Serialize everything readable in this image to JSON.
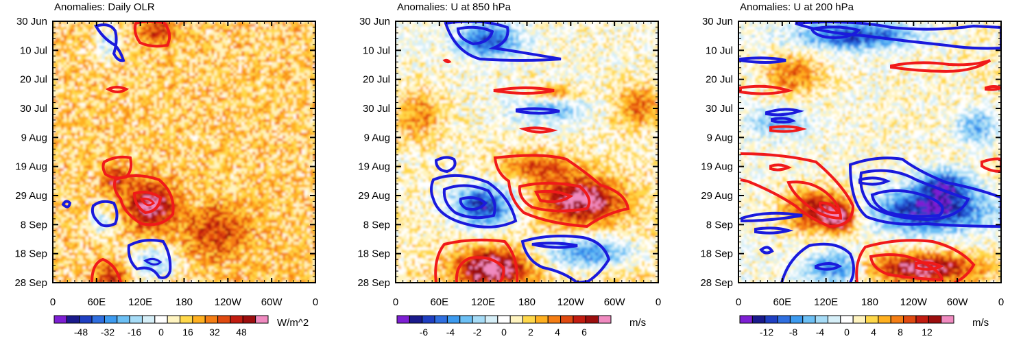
{
  "chart_data": [
    {
      "type": "heatmap",
      "title": "Anomalies: Daily OLR",
      "x_ticks": [
        "0",
        "60E",
        "120E",
        "180",
        "120W",
        "60W",
        "0"
      ],
      "y_ticks": [
        "30 Jun",
        "10 Jul",
        "20 Jul",
        "30 Jul",
        "9 Aug",
        "19 Aug",
        "29 Aug",
        "8 Sep",
        "18 Sep",
        "28 Sep"
      ],
      "xlim": [
        0,
        360
      ],
      "ylim_dates": [
        "30 Jun",
        "28 Sep"
      ],
      "colorbar": {
        "labels": [
          "-48",
          "-32",
          "-16",
          "0",
          "16",
          "32",
          "48"
        ],
        "units": "W/m^2",
        "range": [
          -64,
          64
        ]
      }
    },
    {
      "type": "heatmap",
      "title": "Anomalies: U at 850 hPa",
      "x_ticks": [
        "0",
        "60E",
        "120E",
        "180",
        "120W",
        "60W",
        "0"
      ],
      "y_ticks": [
        "30 Jun",
        "10 Jul",
        "20 Jul",
        "30 Jul",
        "9 Aug",
        "19 Aug",
        "29 Aug",
        "8 Sep",
        "18 Sep",
        "28 Sep"
      ],
      "xlim": [
        0,
        360
      ],
      "ylim_dates": [
        "30 Jun",
        "28 Sep"
      ],
      "colorbar": {
        "labels": [
          "-6",
          "-4",
          "-2",
          "0",
          "2",
          "4",
          "6"
        ],
        "units": "m/s",
        "range": [
          -8,
          8
        ]
      }
    },
    {
      "type": "heatmap",
      "title": "Anomalies: U at 200 hPa",
      "x_ticks": [
        "0",
        "60E",
        "120E",
        "180",
        "120W",
        "60W",
        "0"
      ],
      "y_ticks": [
        "30 Jun",
        "10 Jul",
        "20 Jul",
        "30 Jul",
        "9 Aug",
        "19 Aug",
        "29 Aug",
        "8 Sep",
        "18 Sep",
        "28 Sep"
      ],
      "xlim": [
        0,
        360
      ],
      "ylim_dates": [
        "30 Jun",
        "28 Sep"
      ],
      "colorbar": {
        "labels": [
          "-12",
          "-8",
          "-4",
          "0",
          "4",
          "8",
          "12"
        ],
        "units": "m/s",
        "range": [
          -16,
          16
        ]
      }
    }
  ],
  "colors": {
    "palette": [
      "#7e1fd4",
      "#1a1a8c",
      "#1f3fc2",
      "#2f6fe0",
      "#3d9bf0",
      "#6cc0f5",
      "#a6dcf7",
      "#d6eff8",
      "#ffffff",
      "#fff4c0",
      "#ffd84a",
      "#ffb020",
      "#f57e14",
      "#e04a10",
      "#c21c10",
      "#9c0e0e",
      "#f08ac0"
    ],
    "contour_positive": "#f01a1a",
    "contour_negative": "#1a1adc"
  }
}
